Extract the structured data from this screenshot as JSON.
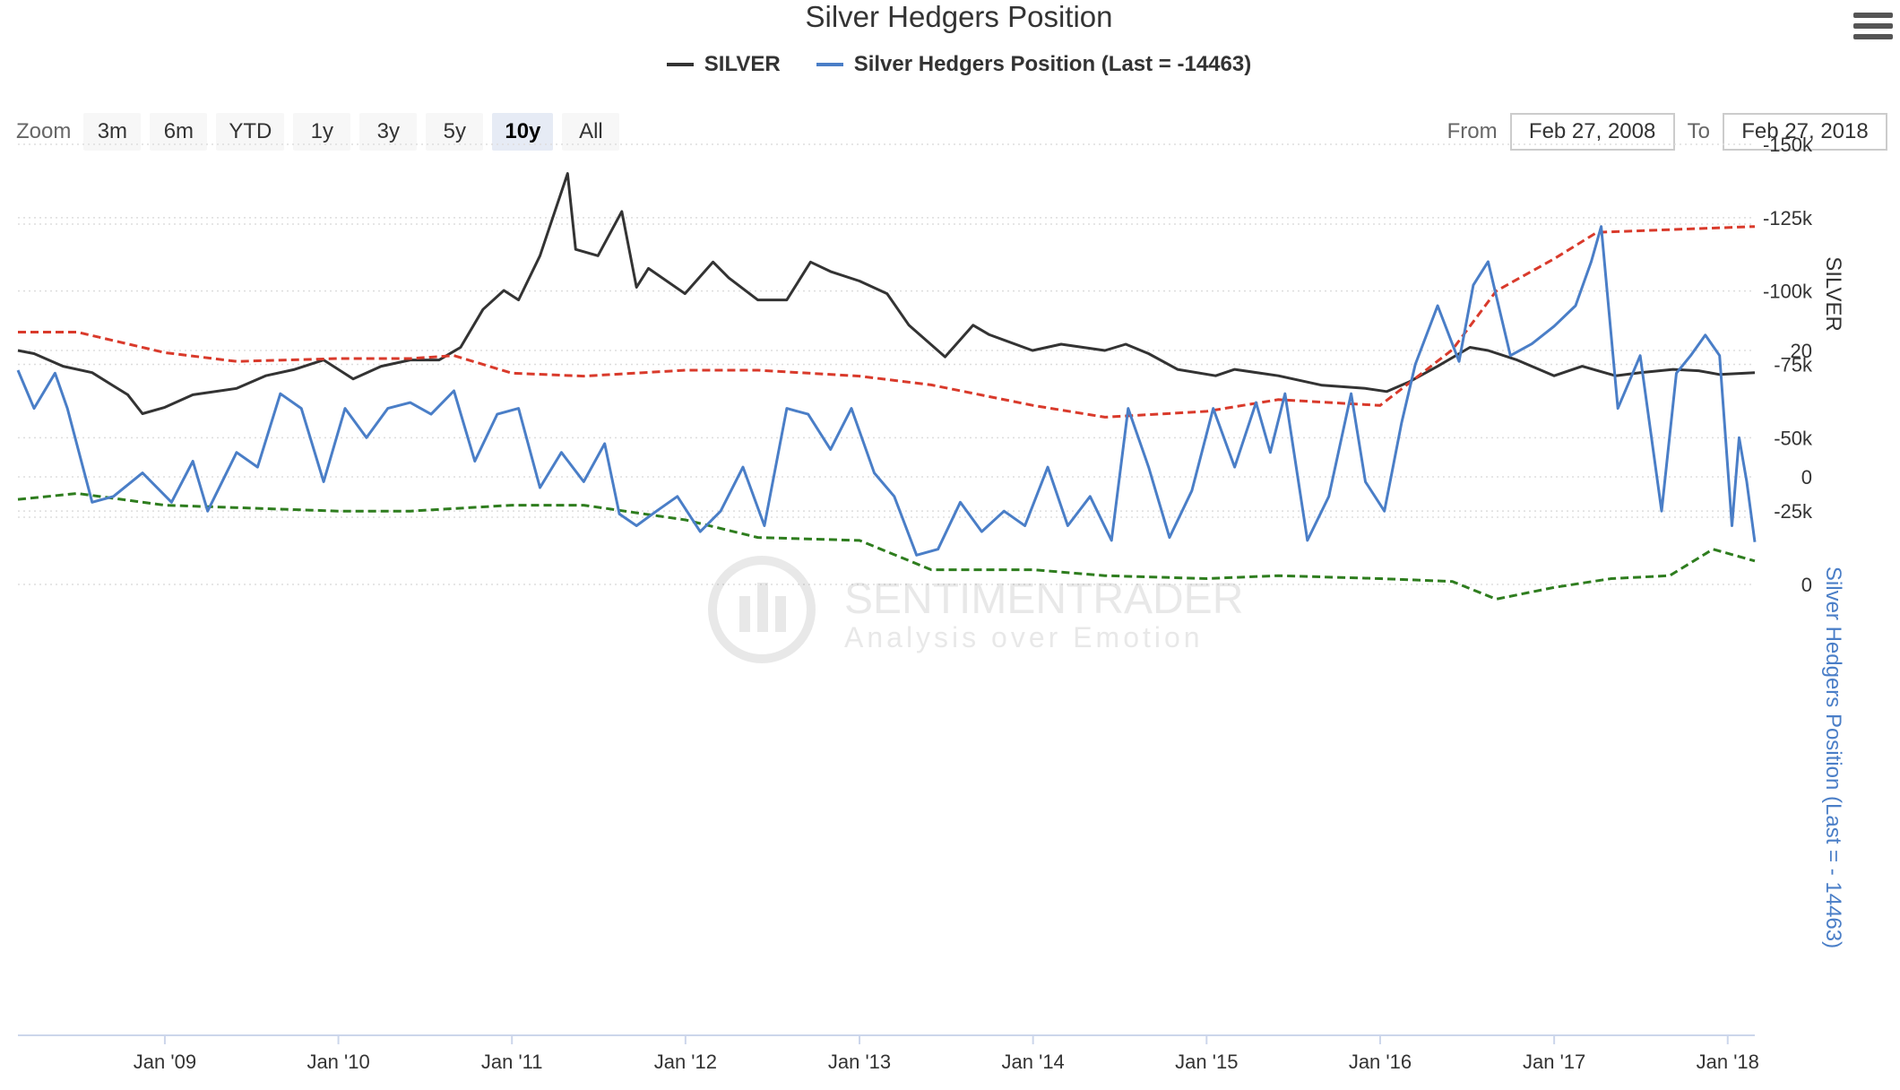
{
  "title": "Silver Hedgers Position",
  "legend": [
    {
      "label": "SILVER",
      "color": "#333333"
    },
    {
      "label": "Silver Hedgers Position (Last = -14463)",
      "color": "#4a7ec7"
    }
  ],
  "zoom": {
    "label": "Zoom",
    "buttons": [
      "3m",
      "6m",
      "YTD",
      "1y",
      "3y",
      "5y",
      "10y",
      "All"
    ],
    "active": "10y"
  },
  "range": {
    "from_label": "From",
    "from_value": "Feb 27, 2008",
    "to_label": "To",
    "to_value": "Feb 27, 2018"
  },
  "watermark": {
    "line1": "SENTIMENTRADER",
    "line2": "Analysis over Emotion"
  },
  "colors": {
    "silver": "#333333",
    "hedgers": "#4a7ec7",
    "upper_band": "#2e7d1e",
    "lower_band": "#d93a2b",
    "grid": "#dddddd"
  },
  "chart_data": [
    {
      "type": "line",
      "x_range": [
        "2008-02-27",
        "2018-02-27"
      ],
      "x_ticks": [
        "Jan '09",
        "Jan '10",
        "Jan '11",
        "Jan '12",
        "Jan '13",
        "Jan '14",
        "Jan '15",
        "Jan '16",
        "Jan '17",
        "Jan '18"
      ],
      "ylabel": "SILVER",
      "ylim": [
        0,
        50
      ],
      "y_ticks": [
        "20",
        "0"
      ],
      "series": [
        {
          "name": "SILVER",
          "x": [
            "2008-02-27",
            "2008-04-01",
            "2008-06-01",
            "2008-08-01",
            "2008-10-15",
            "2008-11-15",
            "2009-01-01",
            "2009-03-01",
            "2009-06-01",
            "2009-08-01",
            "2009-10-01",
            "2009-12-01",
            "2010-02-01",
            "2010-04-01",
            "2010-06-01",
            "2010-08-01",
            "2010-09-15",
            "2010-11-01",
            "2010-12-15",
            "2011-01-15",
            "2011-03-01",
            "2011-04-28",
            "2011-05-15",
            "2011-07-01",
            "2011-08-20",
            "2011-09-20",
            "2011-10-15",
            "2011-12-31",
            "2012-02-28",
            "2012-04-01",
            "2012-06-01",
            "2012-08-01",
            "2012-09-20",
            "2012-11-01",
            "2013-01-01",
            "2013-02-28",
            "2013-04-15",
            "2013-06-30",
            "2013-08-28",
            "2013-10-01",
            "2013-12-31",
            "2014-03-01",
            "2014-06-01",
            "2014-07-15",
            "2014-09-01",
            "2014-11-01",
            "2015-01-20",
            "2015-03-01",
            "2015-06-01",
            "2015-09-01",
            "2015-12-01",
            "2016-01-15",
            "2016-03-01",
            "2016-05-01",
            "2016-07-08",
            "2016-08-15",
            "2016-10-15",
            "2017-01-01",
            "2017-03-01",
            "2017-05-10",
            "2017-07-01",
            "2017-09-08",
            "2017-11-01",
            "2017-12-15",
            "2018-02-27"
          ],
          "values": [
            20,
            19.5,
            17.5,
            16.5,
            13,
            10,
            11,
            13,
            14,
            16,
            17,
            18.5,
            15.5,
            17.5,
            18.5,
            18.5,
            20.5,
            26.5,
            29.5,
            28,
            35,
            48,
            36,
            35,
            42,
            30,
            33,
            29,
            34,
            31.5,
            28,
            28,
            34,
            32.5,
            31,
            29,
            24,
            19,
            24,
            22.5,
            20,
            21,
            20,
            21,
            19.5,
            17,
            16,
            17,
            16,
            14.5,
            14,
            13.5,
            15,
            17.5,
            20.5,
            20,
            18.5,
            16,
            17.5,
            16,
            16.5,
            17,
            16.8,
            16.2,
            16.5
          ]
        }
      ]
    },
    {
      "type": "line",
      "x_range": [
        "2008-02-27",
        "2018-02-27"
      ],
      "x_ticks": [
        "Jan '09",
        "Jan '10",
        "Jan '11",
        "Jan '12",
        "Jan '13",
        "Jan '14",
        "Jan '15",
        "Jan '16",
        "Jan '17",
        "Jan '18"
      ],
      "ylabel": "Silver Hedgers Position (Last = - 14463)",
      "ylim": [
        -150000,
        0
      ],
      "y_ticks": [
        "0",
        "-25k",
        "-50k",
        "-75k",
        "-100k",
        "-125k",
        "-150k"
      ],
      "series": [
        {
          "name": "Silver Hedgers Position (Last = -14463)",
          "x": [
            "2008-02-27",
            "2008-04-01",
            "2008-05-15",
            "2008-06-10",
            "2008-08-01",
            "2008-09-15",
            "2008-11-15",
            "2009-01-15",
            "2009-03-01",
            "2009-04-01",
            "2009-06-01",
            "2009-07-15",
            "2009-09-01",
            "2009-10-15",
            "2009-12-01",
            "2010-01-15",
            "2010-03-01",
            "2010-04-15",
            "2010-06-01",
            "2010-07-15",
            "2010-09-01",
            "2010-10-15",
            "2010-12-01",
            "2011-01-15",
            "2011-03-01",
            "2011-04-15",
            "2011-06-01",
            "2011-07-15",
            "2011-08-15",
            "2011-09-20",
            "2011-11-01",
            "2011-12-15",
            "2012-02-01",
            "2012-03-15",
            "2012-05-01",
            "2012-06-15",
            "2012-08-01",
            "2012-09-15",
            "2012-11-01",
            "2012-12-15",
            "2013-02-01",
            "2013-03-15",
            "2013-05-01",
            "2013-06-15",
            "2013-08-01",
            "2013-09-15",
            "2013-11-01",
            "2013-12-15",
            "2014-02-01",
            "2014-03-15",
            "2014-05-01",
            "2014-06-15",
            "2014-07-20",
            "2014-09-01",
            "2014-10-15",
            "2014-12-01",
            "2015-01-15",
            "2015-03-01",
            "2015-04-15",
            "2015-05-15",
            "2015-06-15",
            "2015-08-01",
            "2015-09-15",
            "2015-11-01",
            "2015-12-01",
            "2016-01-10",
            "2016-02-15",
            "2016-03-15",
            "2016-05-01",
            "2016-06-15",
            "2016-07-15",
            "2016-08-15",
            "2016-10-01",
            "2016-11-15",
            "2017-01-01",
            "2017-02-15",
            "2017-03-20",
            "2017-04-10",
            "2017-05-15",
            "2017-07-01",
            "2017-08-15",
            "2017-09-15",
            "2017-10-15",
            "2017-11-15",
            "2017-12-15",
            "2018-01-10",
            "2018-01-25",
            "2018-02-10",
            "2018-02-27"
          ],
          "values": [
            -73000,
            -60000,
            -72000,
            -60000,
            -28000,
            -30000,
            -38000,
            -28000,
            -42000,
            -25000,
            -45000,
            -40000,
            -65000,
            -60000,
            -35000,
            -60000,
            -50000,
            -60000,
            -62000,
            -58000,
            -66000,
            -42000,
            -58000,
            -60000,
            -33000,
            -45000,
            -35000,
            -48000,
            -24000,
            -20000,
            -25000,
            -30000,
            -18000,
            -25000,
            -40000,
            -20000,
            -60000,
            -58000,
            -46000,
            -60000,
            -38000,
            -30000,
            -10000,
            -12000,
            -28000,
            -18000,
            -25000,
            -20000,
            -40000,
            -20000,
            -30000,
            -15000,
            -60000,
            -40000,
            -16000,
            -32000,
            -60000,
            -40000,
            -62000,
            -45000,
            -65000,
            -15000,
            -30000,
            -65000,
            -35000,
            -25000,
            -55000,
            -75000,
            -95000,
            -76000,
            -102000,
            -110000,
            -78000,
            -82000,
            -88000,
            -95000,
            -110000,
            -122000,
            -60000,
            -78000,
            -25000,
            -72000,
            -78000,
            -85000,
            -78000,
            -20000,
            -50000,
            -35000,
            -14463
          ]
        },
        {
          "name": "",
          "x": [
            "2008-02-27",
            "2008-07-01",
            "2009-01-01",
            "2010-01-01",
            "2010-06-01",
            "2011-01-01",
            "2011-06-01",
            "2012-01-01",
            "2012-06-01",
            "2013-01-01",
            "2013-06-01",
            "2014-01-01",
            "2014-06-01",
            "2015-01-01",
            "2015-06-01",
            "2016-01-01",
            "2016-06-01",
            "2016-09-01",
            "2017-01-01",
            "2017-05-01",
            "2017-09-01",
            "2017-12-01",
            "2018-02-27"
          ],
          "values": [
            -29000,
            -31000,
            -27000,
            -25000,
            -25000,
            -27000,
            -27000,
            -22000,
            -16000,
            -15000,
            -5000,
            -5000,
            -3000,
            -2000,
            -3000,
            -2000,
            -1000,
            5000,
            1000,
            -2000,
            -3000,
            -12000,
            -8000
          ]
        },
        {
          "name": "",
          "x": [
            "2008-02-27",
            "2008-07-01",
            "2009-01-01",
            "2009-06-01",
            "2010-01-01",
            "2010-06-01",
            "2010-09-01",
            "2011-01-01",
            "2011-06-01",
            "2012-01-01",
            "2012-06-01",
            "2013-01-01",
            "2013-06-01",
            "2014-01-01",
            "2014-06-01",
            "2015-01-01",
            "2015-06-01",
            "2016-01-01",
            "2016-06-01",
            "2016-09-01",
            "2017-01-01",
            "2017-04-01",
            "2018-02-27"
          ],
          "values": [
            -86000,
            -86000,
            -79000,
            -76000,
            -77000,
            -77000,
            -78000,
            -72000,
            -71000,
            -73000,
            -73000,
            -71000,
            -68000,
            -61000,
            -57000,
            -59000,
            -63000,
            -61000,
            -80000,
            -100000,
            -111000,
            -120000,
            -122000
          ]
        }
      ]
    }
  ]
}
